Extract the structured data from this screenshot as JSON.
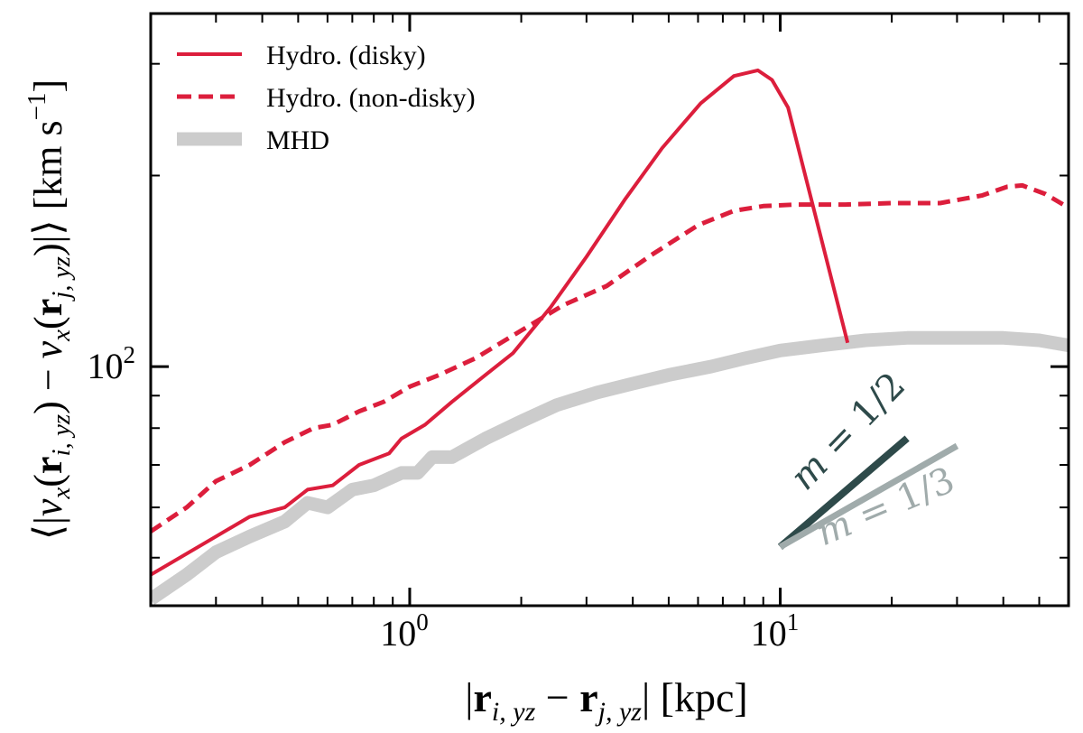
{
  "chart_data": {
    "type": "line",
    "xscale": "log",
    "yscale": "log",
    "xlim": [
      0.2,
      60
    ],
    "ylim": [
      42,
      360
    ],
    "xlabel_parts": [
      "|",
      "r",
      "i, yz",
      " − ",
      "r",
      "j, yz",
      "| [kpc]"
    ],
    "ylabel_parts": [
      "⟨|",
      "v",
      "x",
      "(",
      "r",
      "i, yz",
      ") − ",
      "v",
      "x",
      "(",
      "r",
      "j, yz",
      ")|⟩ [km s",
      "−1",
      "]"
    ],
    "x_major_ticks": [
      {
        "value": 1,
        "base": "10",
        "exp": "0"
      },
      {
        "value": 10,
        "base": "10",
        "exp": "1"
      }
    ],
    "y_major_ticks": [
      {
        "value": 100,
        "base": "10",
        "exp": "2"
      }
    ],
    "legend": {
      "position": "top-left",
      "entries": [
        {
          "label": "Hydro. (disky)",
          "style": "solid",
          "color": "#dc1e3c"
        },
        {
          "label": "Hydro. (non-disky)",
          "style": "dashed",
          "color": "#dc1e3c"
        },
        {
          "label": "MHD",
          "style": "thick",
          "color": "#cccccc"
        }
      ]
    },
    "series": [
      {
        "name": "Hydro. (disky)",
        "color": "#dc1e3c",
        "style": "solid",
        "x": [
          0.2,
          0.3,
          0.37,
          0.46,
          0.53,
          0.62,
          0.73,
          0.88,
          0.95,
          1.1,
          1.3,
          1.6,
          1.9,
          2.4,
          3.0,
          3.8,
          4.8,
          6.1,
          7.5,
          8.7,
          9.5,
          10.5,
          15.2
        ],
        "y": [
          47,
          54,
          58,
          60,
          64,
          65,
          70,
          73,
          77,
          81,
          88,
          97,
          105,
          124,
          149,
          183,
          221,
          260,
          287,
          293,
          283,
          256,
          109
        ]
      },
      {
        "name": "Hydro. (non-disky)",
        "color": "#dc1e3c",
        "style": "dashed",
        "x": [
          0.2,
          0.25,
          0.3,
          0.37,
          0.46,
          0.55,
          0.62,
          0.73,
          0.85,
          1.0,
          1.2,
          1.5,
          2.0,
          2.6,
          3.4,
          4.5,
          6.0,
          7.5,
          9.0,
          11,
          15,
          20,
          27,
          35,
          41,
          45,
          52,
          60
        ],
        "y": [
          55,
          60,
          66,
          70,
          76,
          80,
          81,
          85,
          88,
          93,
          97,
          103,
          114,
          125,
          134,
          150,
          167,
          176,
          179,
          180,
          180,
          181,
          181,
          186,
          192,
          193,
          187,
          178
        ]
      },
      {
        "name": "MHD",
        "color": "#cccccc",
        "style": "thick",
        "x": [
          0.2,
          0.25,
          0.3,
          0.37,
          0.46,
          0.53,
          0.6,
          0.7,
          0.8,
          0.95,
          1.05,
          1.15,
          1.3,
          1.6,
          2.0,
          2.5,
          3.2,
          4.0,
          5.0,
          6.5,
          8.0,
          10.0,
          13.0,
          17.0,
          22.0,
          30.0,
          40.0,
          50.0,
          60.0
        ],
        "y": [
          43,
          47,
          51,
          54,
          57,
          61,
          60,
          64,
          65,
          68,
          68,
          72,
          72,
          77,
          82,
          87,
          91,
          94,
          97,
          100,
          103,
          106,
          108,
          110,
          111,
          111,
          111,
          110,
          108
        ]
      }
    ],
    "reference_slopes": [
      {
        "label": "m = 1/2",
        "slope": 0.5,
        "color": "#2e4a4a",
        "x": [
          10,
          22
        ],
        "y": [
          52,
          77.1
        ],
        "annotation": {
          "m": "m",
          "eq": " = ",
          "frac": "1/2"
        }
      },
      {
        "label": "m = 1/3",
        "slope": 0.333,
        "color": "#a0abab",
        "x": [
          10,
          30
        ],
        "y": [
          52,
          75.0
        ],
        "annotation": {
          "m": "m",
          "eq": " = ",
          "frac": "1/3"
        }
      }
    ]
  }
}
